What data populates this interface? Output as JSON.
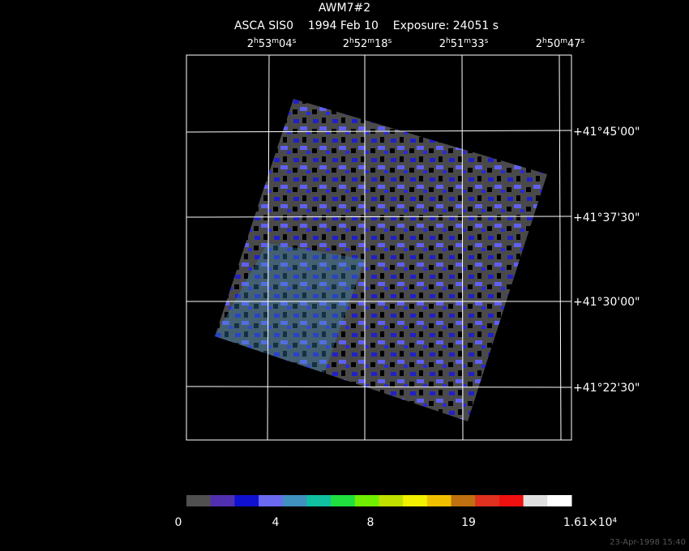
{
  "title": "AWM7#2",
  "subtitle": "ASCA SIS0    1994 Feb 10    Exposure: 24051 s",
  "ra_labels": [
    [
      "2",
      "h",
      "53",
      "m",
      "04",
      "s"
    ],
    [
      "2",
      "h",
      "52",
      "m",
      "18",
      "s"
    ],
    [
      "2",
      "h",
      "51",
      "m",
      "33",
      "s"
    ],
    [
      "2",
      "h",
      "50",
      "m",
      "47",
      "s"
    ]
  ],
  "dec_labels": [
    "+41°45'00\"",
    "+41°37'30\"",
    "+41°30'00\"",
    "+41°22'30\""
  ],
  "colorbar": {
    "colors": [
      "#505050",
      "#5030b0",
      "#1010d0",
      "#6a6af0",
      "#4090c0",
      "#10c0a0",
      "#20e040",
      "#70f000",
      "#c0e000",
      "#f0f000",
      "#f0c000",
      "#c07010",
      "#e03020",
      "#f01010",
      "#e0e0e0",
      "#ffffff"
    ],
    "labels": [
      "0",
      "4",
      "8",
      "19",
      "1.61×10⁴"
    ]
  },
  "footer": "23-Apr-1998 15:40"
}
